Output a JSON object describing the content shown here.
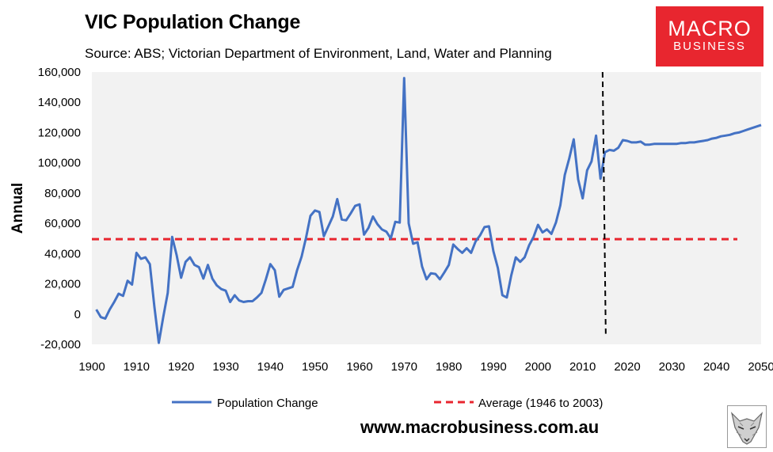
{
  "header": {
    "title": "VIC Population Change",
    "subtitle": "Source: ABS; Victorian Department of Environment, Land, Water and Planning"
  },
  "logo": {
    "line1": "MACRO",
    "line2": "BUSINESS",
    "color": "#e8262f"
  },
  "footer": {
    "website": "www.macrobusiness.com.au",
    "mascot_icon": "fox-icon"
  },
  "chart_data": {
    "type": "line",
    "ylabel": "Annual",
    "xlim": [
      1900,
      2050
    ],
    "ylim": [
      -20000,
      160000
    ],
    "x_ticks": [
      1900,
      1910,
      1920,
      1930,
      1940,
      1950,
      1960,
      1970,
      1980,
      1990,
      2000,
      2010,
      2020,
      2030,
      2040,
      2050
    ],
    "y_ticks": [
      -20000,
      0,
      20000,
      40000,
      60000,
      80000,
      100000,
      120000,
      140000,
      160000
    ],
    "y_tick_labels": [
      "-20,000",
      "0",
      "20,000",
      "40,000",
      "60,000",
      "80,000",
      "100,000",
      "120,000",
      "140,000",
      "160,000"
    ],
    "series": [
      {
        "name": "Population Change",
        "color": "#4472c4",
        "style": "solid",
        "points": [
          [
            1901,
            3000
          ],
          [
            1902,
            -2000
          ],
          [
            1903,
            -3000
          ],
          [
            1904,
            3000
          ],
          [
            1905,
            8000
          ],
          [
            1906,
            13500
          ],
          [
            1907,
            12000
          ],
          [
            1908,
            22000
          ],
          [
            1909,
            19500
          ],
          [
            1910,
            40500
          ],
          [
            1911,
            36500
          ],
          [
            1912,
            37500
          ],
          [
            1913,
            33000
          ],
          [
            1914,
            5000
          ],
          [
            1915,
            -19000
          ],
          [
            1916,
            -2000
          ],
          [
            1917,
            14000
          ],
          [
            1918,
            51000
          ],
          [
            1919,
            39000
          ],
          [
            1920,
            24000
          ],
          [
            1921,
            34500
          ],
          [
            1922,
            37500
          ],
          [
            1923,
            32500
          ],
          [
            1924,
            31000
          ],
          [
            1925,
            23500
          ],
          [
            1926,
            32500
          ],
          [
            1927,
            23500
          ],
          [
            1928,
            19000
          ],
          [
            1929,
            16500
          ],
          [
            1930,
            15500
          ],
          [
            1931,
            8000
          ],
          [
            1932,
            12500
          ],
          [
            1933,
            9000
          ],
          [
            1934,
            8000
          ],
          [
            1935,
            8500
          ],
          [
            1936,
            8500
          ],
          [
            1937,
            11000
          ],
          [
            1938,
            14000
          ],
          [
            1939,
            23000
          ],
          [
            1940,
            33000
          ],
          [
            1941,
            29000
          ],
          [
            1942,
            11500
          ],
          [
            1943,
            16000
          ],
          [
            1944,
            17000
          ],
          [
            1945,
            18000
          ],
          [
            1946,
            29000
          ],
          [
            1947,
            38000
          ],
          [
            1948,
            50500
          ],
          [
            1949,
            65000
          ],
          [
            1950,
            68500
          ],
          [
            1951,
            67500
          ],
          [
            1952,
            51500
          ],
          [
            1953,
            58000
          ],
          [
            1954,
            64500
          ],
          [
            1955,
            76000
          ],
          [
            1956,
            62500
          ],
          [
            1957,
            62000
          ],
          [
            1958,
            66500
          ],
          [
            1959,
            71500
          ],
          [
            1960,
            72500
          ],
          [
            1961,
            52500
          ],
          [
            1962,
            57000
          ],
          [
            1963,
            64500
          ],
          [
            1964,
            59500
          ],
          [
            1965,
            56000
          ],
          [
            1966,
            54500
          ],
          [
            1967,
            50000
          ],
          [
            1968,
            61000
          ],
          [
            1969,
            60500
          ],
          [
            1970,
            156000
          ],
          [
            1971,
            60000
          ],
          [
            1972,
            46500
          ],
          [
            1973,
            47500
          ],
          [
            1974,
            31500
          ],
          [
            1975,
            23000
          ],
          [
            1976,
            27000
          ],
          [
            1977,
            26500
          ],
          [
            1978,
            23000
          ],
          [
            1979,
            27500
          ],
          [
            1980,
            32500
          ],
          [
            1981,
            46000
          ],
          [
            1982,
            43000
          ],
          [
            1983,
            40500
          ],
          [
            1984,
            43500
          ],
          [
            1985,
            40500
          ],
          [
            1986,
            48000
          ],
          [
            1987,
            52000
          ],
          [
            1988,
            57500
          ],
          [
            1989,
            58000
          ],
          [
            1990,
            41500
          ],
          [
            1991,
            30500
          ],
          [
            1992,
            12500
          ],
          [
            1993,
            11000
          ],
          [
            1994,
            25500
          ],
          [
            1995,
            37500
          ],
          [
            1996,
            34500
          ],
          [
            1997,
            37500
          ],
          [
            1998,
            45500
          ],
          [
            1999,
            51000
          ],
          [
            2000,
            59000
          ],
          [
            2001,
            54000
          ],
          [
            2002,
            56000
          ],
          [
            2003,
            53000
          ],
          [
            2004,
            60500
          ],
          [
            2005,
            72000
          ],
          [
            2006,
            92000
          ],
          [
            2007,
            103000
          ],
          [
            2008,
            115500
          ],
          [
            2009,
            89000
          ],
          [
            2010,
            76500
          ],
          [
            2011,
            95000
          ],
          [
            2012,
            101000
          ],
          [
            2013,
            118000
          ],
          [
            2014,
            89500
          ],
          [
            2015,
            107000
          ],
          [
            2016,
            108500
          ],
          [
            2017,
            108000
          ],
          [
            2018,
            110000
          ],
          [
            2019,
            115000
          ],
          [
            2020,
            114500
          ],
          [
            2021,
            113500
          ],
          [
            2022,
            113500
          ],
          [
            2023,
            114000
          ],
          [
            2024,
            112000
          ],
          [
            2025,
            112000
          ],
          [
            2026,
            112500
          ],
          [
            2027,
            112500
          ],
          [
            2028,
            112500
          ],
          [
            2029,
            112500
          ],
          [
            2030,
            112500
          ],
          [
            2031,
            112500
          ],
          [
            2032,
            113000
          ],
          [
            2033,
            113000
          ],
          [
            2034,
            113500
          ],
          [
            2035,
            113500
          ],
          [
            2036,
            114000
          ],
          [
            2037,
            114500
          ],
          [
            2038,
            115000
          ],
          [
            2039,
            116000
          ],
          [
            2040,
            116500
          ],
          [
            2041,
            117500
          ],
          [
            2042,
            118000
          ],
          [
            2043,
            118500
          ],
          [
            2044,
            119500
          ],
          [
            2045,
            120000
          ],
          [
            2046,
            121000
          ],
          [
            2047,
            122000
          ],
          [
            2048,
            123000
          ],
          [
            2049,
            124000
          ],
          [
            2050,
            125000
          ]
        ]
      },
      {
        "name": "Average (1946 to 2003)",
        "color": "#e8262f",
        "style": "dashed",
        "points": [
          [
            1900,
            49500
          ],
          [
            2050,
            49500
          ]
        ]
      }
    ],
    "annotations": [
      {
        "type": "vertical-line",
        "x": 2015,
        "y_from": 160000,
        "y_to": -13000,
        "style": "dashed",
        "color": "#000000",
        "note": "projection start"
      }
    ],
    "legend_position": "bottom"
  }
}
